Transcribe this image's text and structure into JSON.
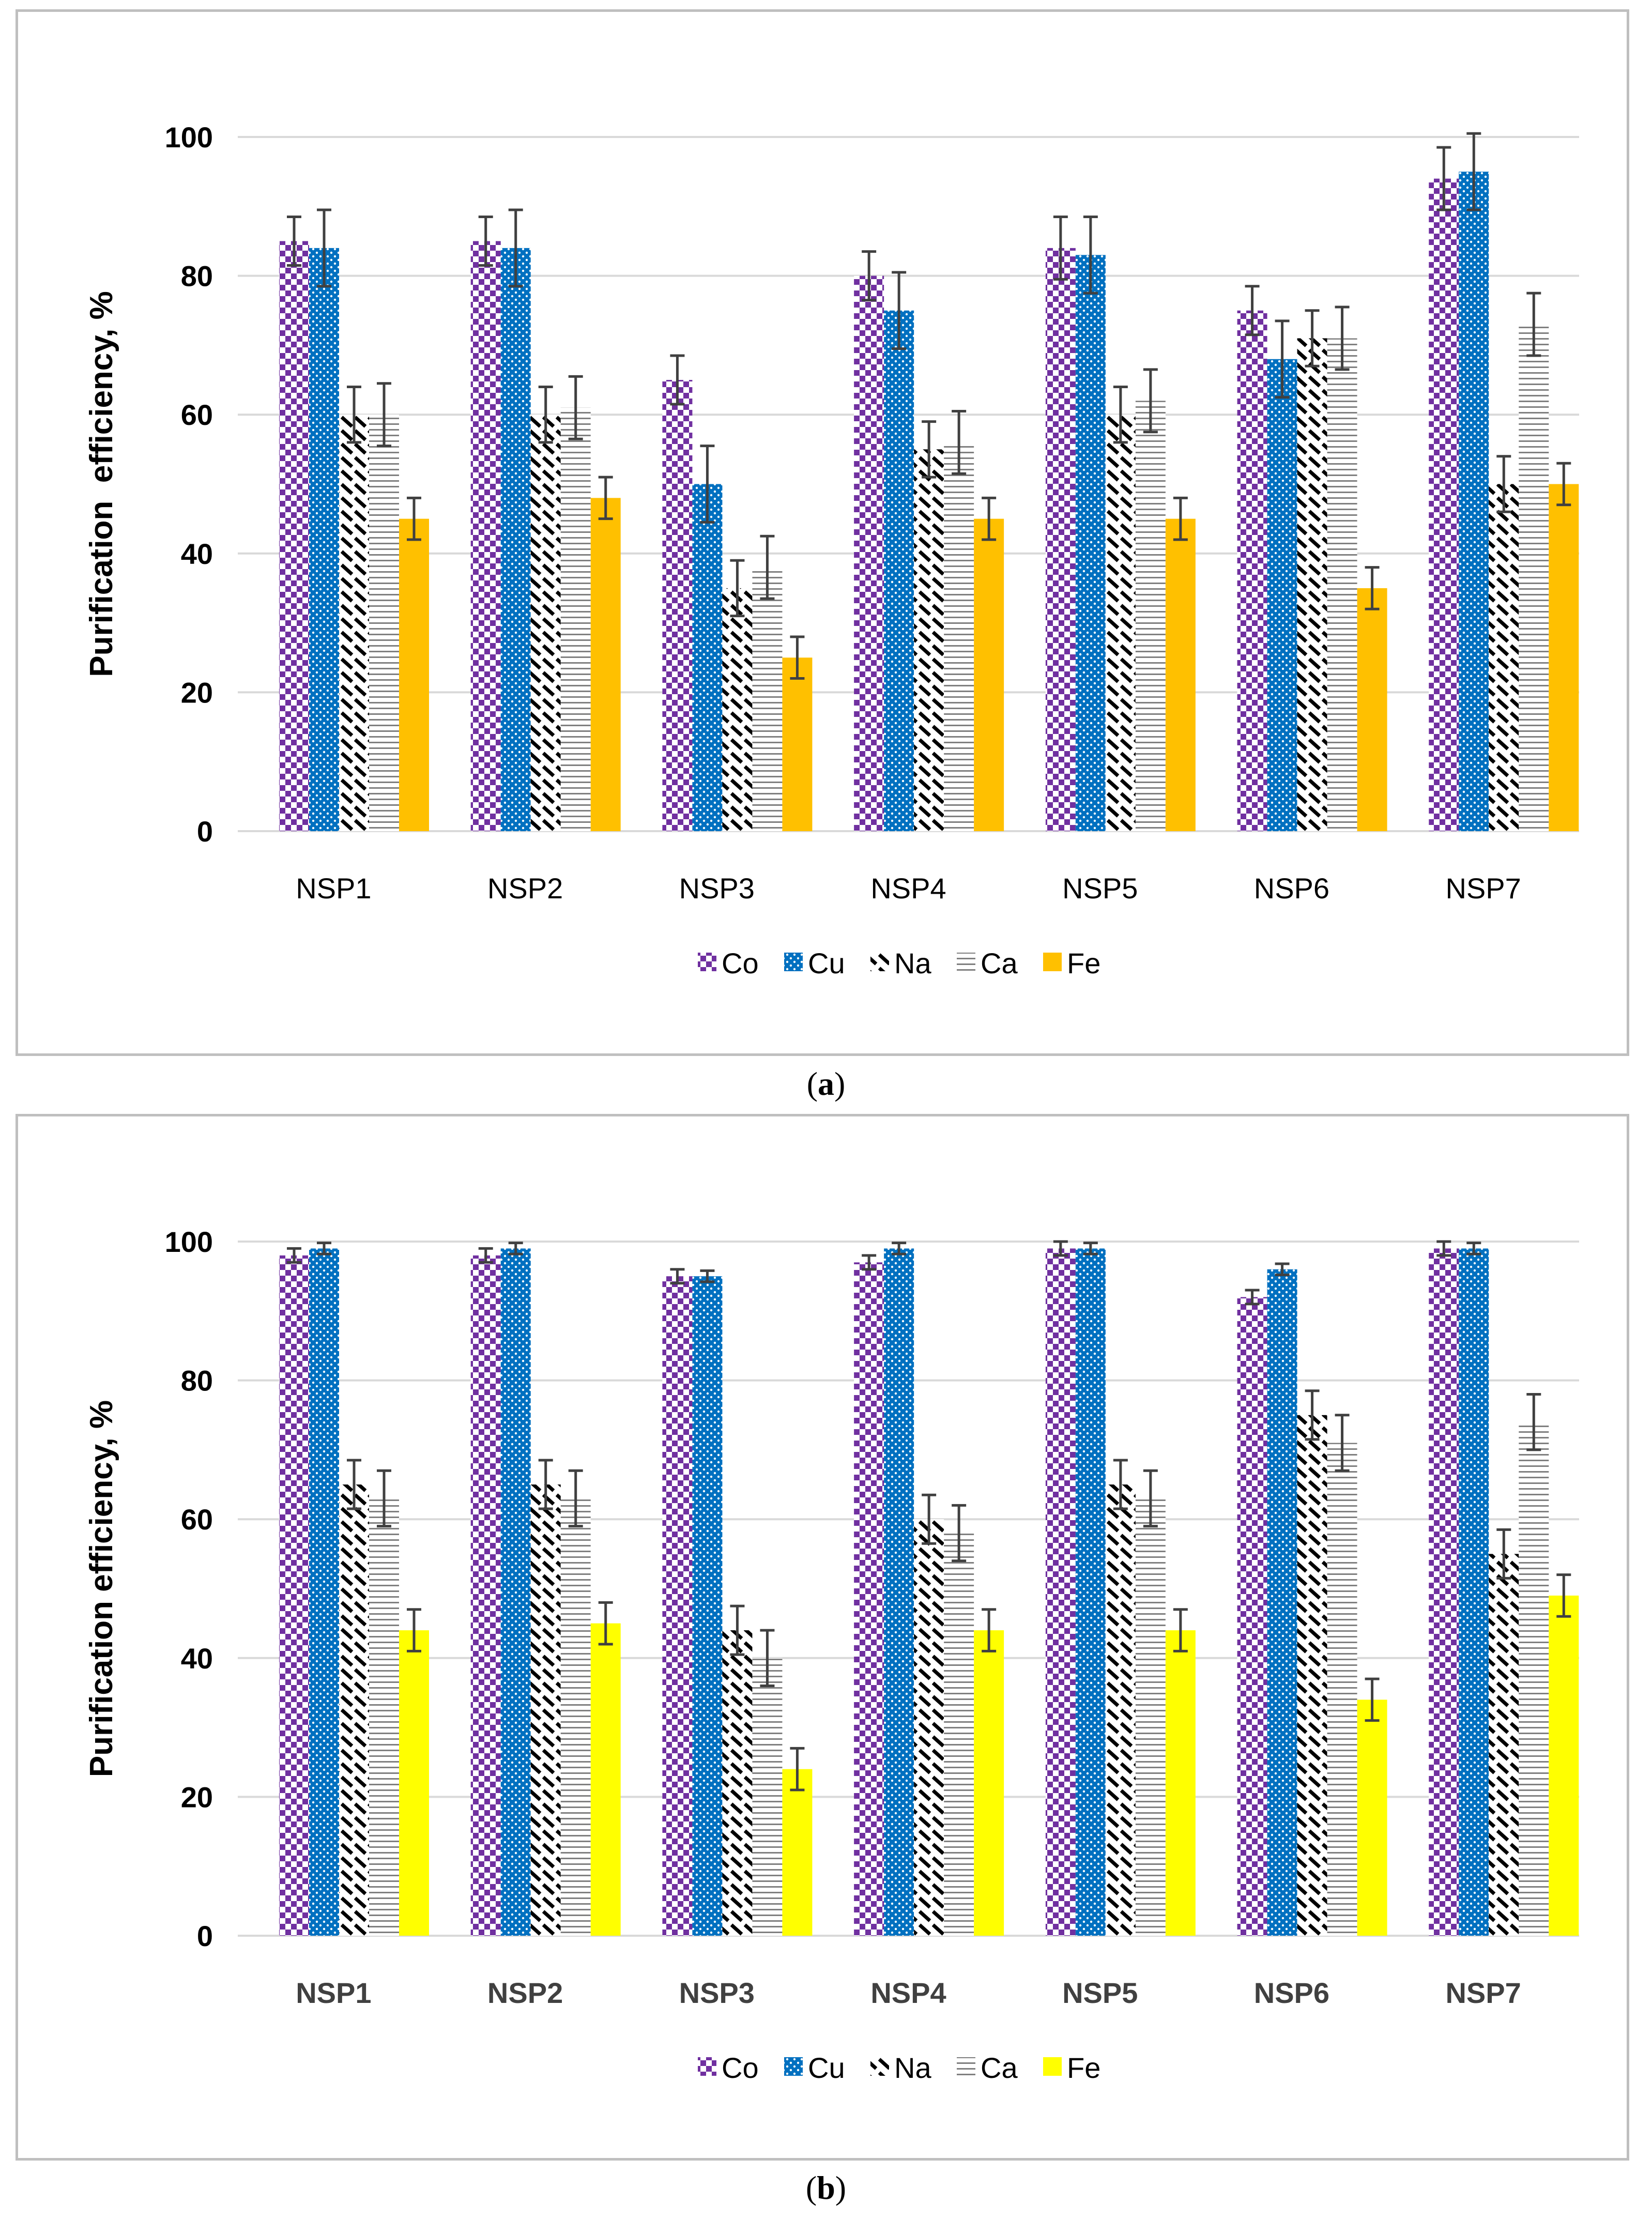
{
  "charts": [
    {
      "id": "a",
      "caption_open": "(",
      "caption_letter": "a",
      "caption_close": ")",
      "fe_color": "#FFC000",
      "tick_label_color": "#000000",
      "tick_label_bold": false
    },
    {
      "id": "b",
      "caption_open": "(",
      "caption_letter": "b",
      "caption_close": ")",
      "fe_color": "#FFFF00",
      "tick_label_color": "#404040",
      "tick_label_bold": true
    }
  ],
  "chart_data": [
    {
      "type": "bar",
      "title": "",
      "xlabel": "",
      "ylabel": "Purification  efficiency, %",
      "ylim": [
        0,
        100
      ],
      "yticks": [
        0,
        20,
        40,
        60,
        80,
        100
      ],
      "grid": true,
      "legend_position": "bottom",
      "categories": [
        "NSP1",
        "NSP2",
        "NSP3",
        "NSP4",
        "NSP5",
        "NSP6",
        "NSP7"
      ],
      "series": [
        {
          "name": "Co",
          "color": "#7030A0",
          "pattern": "checker",
          "values": [
            85,
            85,
            65,
            80,
            84,
            75,
            94
          ],
          "errors": [
            3.5,
            3.5,
            3.5,
            3.5,
            4.5,
            3.5,
            4.5
          ]
        },
        {
          "name": "Cu",
          "color": "#0070C0",
          "pattern": "dots",
          "values": [
            84,
            84,
            50,
            75,
            83,
            68,
            95
          ],
          "errors": [
            5.5,
            5.5,
            5.5,
            5.5,
            5.5,
            5.5,
            5.5
          ]
        },
        {
          "name": "Na",
          "color": "#000000",
          "pattern": "diagonal",
          "values": [
            60,
            60,
            35,
            55,
            60,
            71,
            50
          ],
          "errors": [
            4,
            4,
            4,
            4,
            4,
            4,
            4
          ]
        },
        {
          "name": "Ca",
          "color": "#808080",
          "pattern": "horizontal",
          "values": [
            60,
            61,
            38,
            56,
            62,
            71,
            73
          ],
          "errors": [
            4.5,
            4.5,
            4.5,
            4.5,
            4.5,
            4.5,
            4.5
          ]
        },
        {
          "name": "Fe",
          "color": "#FFC000",
          "pattern": "solid",
          "values": [
            45,
            48,
            25,
            45,
            45,
            35,
            50
          ],
          "errors": [
            3,
            3,
            3,
            3,
            3,
            3,
            3
          ]
        }
      ]
    },
    {
      "type": "bar",
      "title": "",
      "xlabel": "",
      "ylabel": "Purification efficiency, %",
      "ylim": [
        0,
        100
      ],
      "yticks": [
        0,
        20,
        40,
        60,
        80,
        100
      ],
      "grid": true,
      "legend_position": "bottom",
      "categories": [
        "NSP1",
        "NSP2",
        "NSP3",
        "NSP4",
        "NSP5",
        "NSP6",
        "NSP7"
      ],
      "series": [
        {
          "name": "Co",
          "color": "#7030A0",
          "pattern": "checker",
          "values": [
            98,
            98,
            95,
            97,
            99,
            92,
            99
          ],
          "errors": [
            1,
            1,
            1,
            1,
            1,
            1,
            1
          ]
        },
        {
          "name": "Cu",
          "color": "#0070C0",
          "pattern": "dots",
          "values": [
            99,
            99,
            95,
            99,
            99,
            96,
            99
          ],
          "errors": [
            0.8,
            0.8,
            0.8,
            0.8,
            0.8,
            0.8,
            0.8
          ]
        },
        {
          "name": "Na",
          "color": "#000000",
          "pattern": "diagonal",
          "values": [
            65,
            65,
            44,
            60,
            65,
            75,
            55
          ],
          "errors": [
            3.5,
            3.5,
            3.5,
            3.5,
            3.5,
            3.5,
            3.5
          ]
        },
        {
          "name": "Ca",
          "color": "#808080",
          "pattern": "horizontal",
          "values": [
            63,
            63,
            40,
            58,
            63,
            71,
            74
          ],
          "errors": [
            4,
            4,
            4,
            4,
            4,
            4,
            4
          ]
        },
        {
          "name": "Fe",
          "color": "#FFFF00",
          "pattern": "solid",
          "values": [
            44,
            45,
            24,
            44,
            44,
            34,
            49
          ],
          "errors": [
            3,
            3,
            3,
            3,
            3,
            3,
            3
          ]
        }
      ]
    }
  ]
}
